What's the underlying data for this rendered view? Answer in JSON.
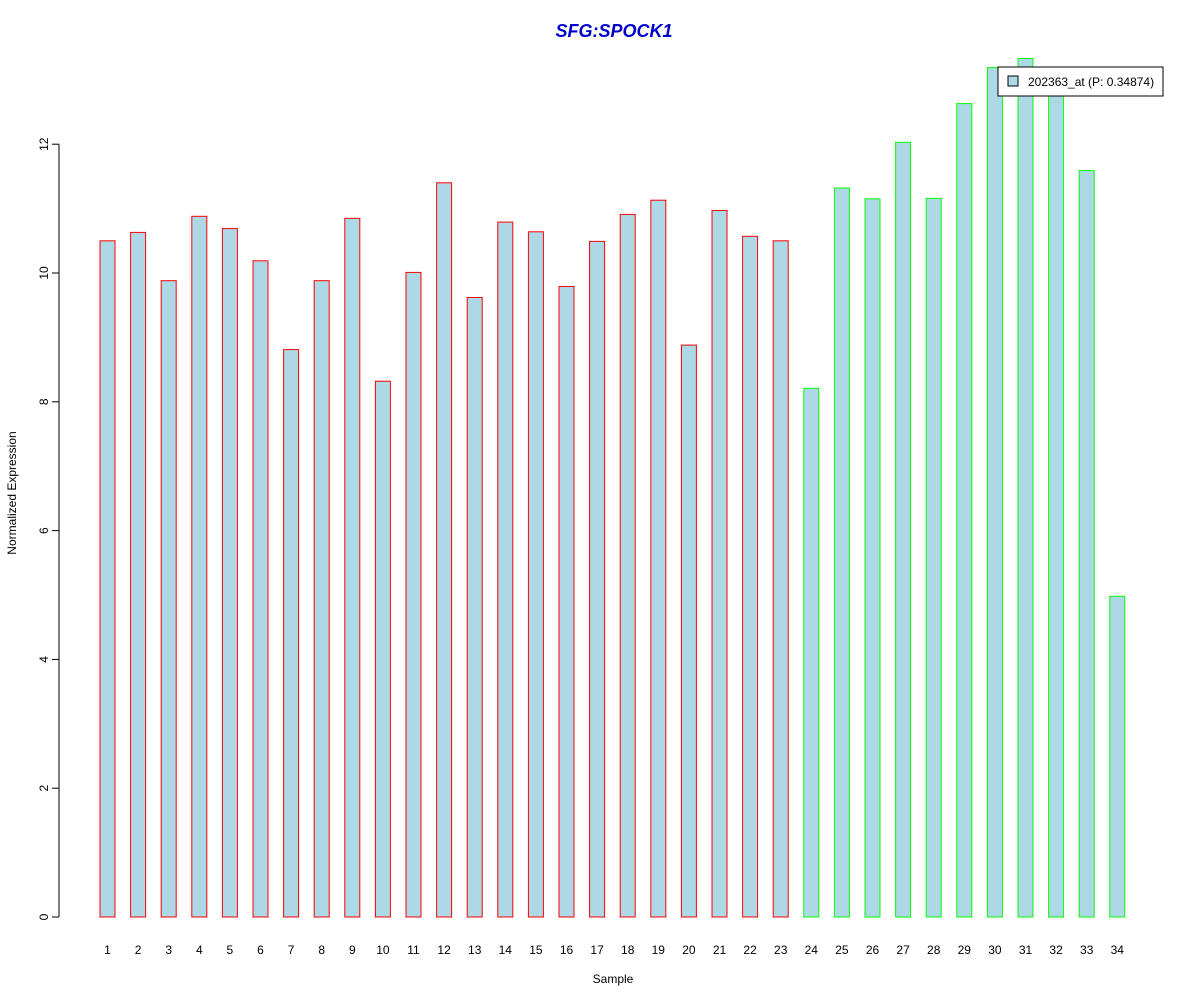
{
  "chart_data": {
    "type": "bar",
    "title": "SFG:SPOCK1",
    "xlabel": "Sample",
    "ylabel": "Normalized Expression",
    "ylim": [
      0,
      13.5
    ],
    "yticks": [
      0,
      2,
      4,
      6,
      8,
      10,
      12
    ],
    "categories": [
      "1",
      "2",
      "3",
      "4",
      "5",
      "6",
      "7",
      "8",
      "9",
      "10",
      "11",
      "12",
      "13",
      "14",
      "15",
      "16",
      "17",
      "18",
      "19",
      "20",
      "21",
      "22",
      "23",
      "24",
      "25",
      "26",
      "27",
      "28",
      "29",
      "30",
      "31",
      "32",
      "33",
      "34"
    ],
    "values": [
      10.5,
      10.63,
      9.88,
      10.88,
      10.69,
      10.19,
      8.81,
      9.88,
      10.85,
      8.32,
      10.01,
      11.4,
      9.62,
      10.79,
      10.64,
      9.79,
      10.49,
      10.91,
      11.13,
      8.88,
      10.97,
      10.57,
      10.5,
      8.21,
      11.32,
      11.15,
      12.03,
      11.16,
      12.63,
      13.19,
      13.33,
      12.88,
      11.59,
      4.98
    ],
    "group_of_bar": [
      1,
      1,
      1,
      1,
      1,
      1,
      1,
      1,
      1,
      1,
      1,
      1,
      1,
      1,
      1,
      1,
      1,
      1,
      1,
      1,
      1,
      1,
      1,
      2,
      2,
      2,
      2,
      2,
      2,
      2,
      2,
      2,
      2,
      2
    ],
    "series": [
      {
        "name": "202363_at (P: 0.34874)",
        "color": "#add8e6"
      }
    ],
    "legend_position": "top-right",
    "grid": false,
    "colors": {
      "bar_fill": "#add8e6",
      "group1_border": "#ff0000",
      "group2_border": "#00ff00",
      "title": "#0000cd",
      "axis": "#000000"
    }
  }
}
